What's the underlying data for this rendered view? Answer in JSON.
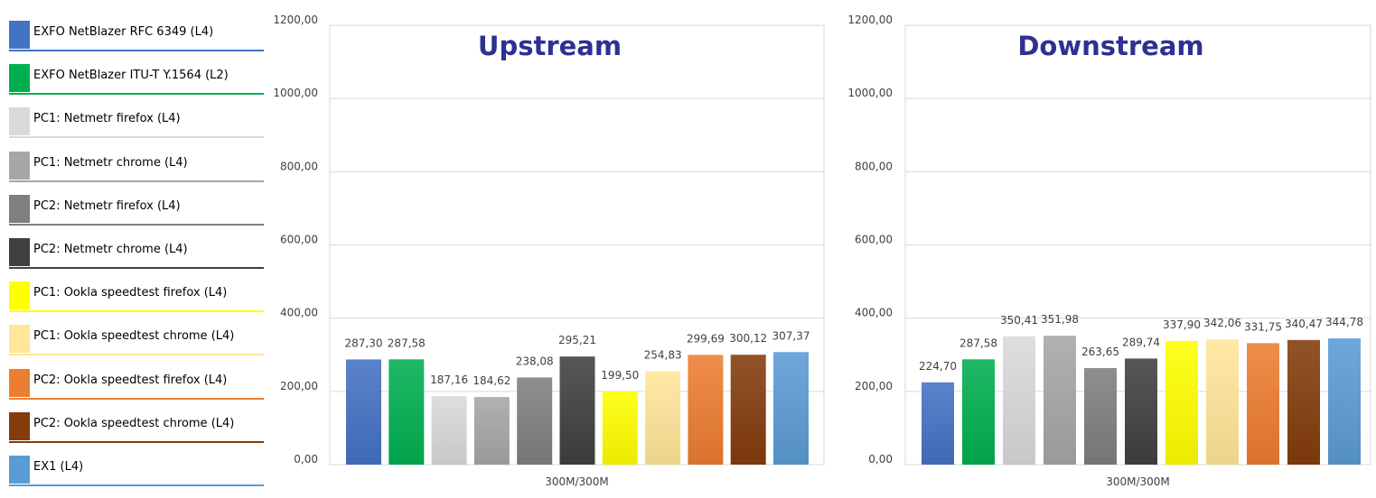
{
  "legend": [
    {
      "label": "EXFO NetBlazer RFC 6349 (L4)",
      "color": "#4472C4"
    },
    {
      "label": "EXFO NetBlazer ITU-T Y.1564 (L2)",
      "color": "#00B050"
    },
    {
      "label": "PC1: Netmetr firefox (L4)",
      "color": "#D9D9D9"
    },
    {
      "label": "PC1: Netmetr chrome (L4)",
      "color": "#A6A6A6"
    },
    {
      "label": "PC2: Netmetr firefox (L4)",
      "color": "#7F7F7F"
    },
    {
      "label": "PC2: Netmetr chrome (L4)",
      "color": "#404040"
    },
    {
      "label": "PC1: Ookla speedtest firefox (L4)",
      "color": "#FFFF00"
    },
    {
      "label": "PC1: Ookla speedtest chrome (L4)",
      "color": "#FFE699"
    },
    {
      "label": "PC2: Ookla speedtest firefox (L4)",
      "color": "#ED7D31"
    },
    {
      "label": "PC2: Ookla speedtest chrome (L4)",
      "color": "#843C0C"
    },
    {
      "label": "EX1 (L4)",
      "color": "#5B9BD5"
    }
  ],
  "chart_data": [
    {
      "type": "bar",
      "title": "Upstream",
      "categories": [
        "300M/300M"
      ],
      "ylim": [
        0,
        1200
      ],
      "yticks": [
        "0,00",
        "200,00",
        "400,00",
        "600,00",
        "800,00",
        "1000,00",
        "1200,00"
      ],
      "grid": true,
      "series": [
        {
          "name": "EXFO NetBlazer RFC 6349 (L4)",
          "values": [
            287.3
          ],
          "label": "287,30"
        },
        {
          "name": "EXFO NetBlazer ITU-T Y.1564 (L2)",
          "values": [
            287.58
          ],
          "label": "287,58"
        },
        {
          "name": "PC1: Netmetr firefox (L4)",
          "values": [
            187.16
          ],
          "label": "187,16"
        },
        {
          "name": "PC1: Netmetr chrome (L4)",
          "values": [
            184.62
          ],
          "label": "184,62"
        },
        {
          "name": "PC2: Netmetr firefox (L4)",
          "values": [
            238.08
          ],
          "label": "238,08"
        },
        {
          "name": "PC2: Netmetr chrome (L4)",
          "values": [
            295.21
          ],
          "label": "295,21"
        },
        {
          "name": "PC1: Ookla speedtest firefox (L4)",
          "values": [
            199.5
          ],
          "label": "199,50"
        },
        {
          "name": "PC1: Ookla speedtest chrome (L4)",
          "values": [
            254.83
          ],
          "label": "254,83"
        },
        {
          "name": "PC2: Ookla speedtest firefox (L4)",
          "values": [
            299.69
          ],
          "label": "299,69"
        },
        {
          "name": "PC2: Ookla speedtest chrome (L4)",
          "values": [
            300.12
          ],
          "label": "300,12"
        },
        {
          "name": "EX1 (L4)",
          "values": [
            307.37
          ],
          "label": "307,37"
        }
      ]
    },
    {
      "type": "bar",
      "title": "Downstream",
      "categories": [
        "300M/300M"
      ],
      "ylim": [
        0,
        1200
      ],
      "yticks": [
        "0,00",
        "200,00",
        "400,00",
        "600,00",
        "800,00",
        "1000,00",
        "1200,00"
      ],
      "grid": true,
      "series": [
        {
          "name": "EXFO NetBlazer RFC 6349 (L4)",
          "values": [
            224.7
          ],
          "label": "224,70"
        },
        {
          "name": "EXFO NetBlazer ITU-T Y.1564 (L2)",
          "values": [
            287.58
          ],
          "label": "287,58"
        },
        {
          "name": "PC1: Netmetr firefox (L4)",
          "values": [
            350.41
          ],
          "label": "350,41"
        },
        {
          "name": "PC1: Netmetr chrome (L4)",
          "values": [
            351.98
          ],
          "label": "351,98"
        },
        {
          "name": "PC2: Netmetr firefox (L4)",
          "values": [
            263.65
          ],
          "label": "263,65"
        },
        {
          "name": "PC2: Netmetr chrome (L4)",
          "values": [
            289.74
          ],
          "label": "289,74"
        },
        {
          "name": "PC1: Ookla speedtest firefox (L4)",
          "values": [
            337.9
          ],
          "label": "337,90"
        },
        {
          "name": "PC1: Ookla speedtest chrome (L4)",
          "values": [
            342.06
          ],
          "label": "342,06"
        },
        {
          "name": "PC2: Ookla speedtest firefox (L4)",
          "values": [
            331.75
          ],
          "label": "331,75"
        },
        {
          "name": "PC2: Ookla speedtest chrome (L4)",
          "values": [
            340.47
          ],
          "label": "340,47"
        },
        {
          "name": "EX1 (L4)",
          "values": [
            344.78
          ],
          "label": "344,78"
        }
      ]
    }
  ]
}
